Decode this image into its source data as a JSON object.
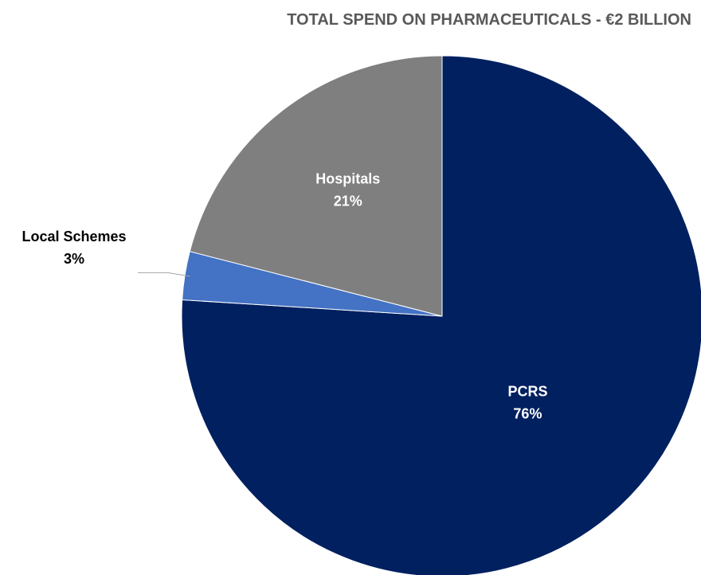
{
  "chart_data": {
    "type": "pie",
    "title": "TOTAL SPEND ON PHARMACEUTICALS - €2 BILLION",
    "slices": [
      {
        "name": "PCRS",
        "value": 76,
        "label": "76%",
        "color": "#002060",
        "label_color": "#ffffff"
      },
      {
        "name": "Local Schemes",
        "value": 3,
        "label": "3%",
        "color": "#4472C4",
        "label_color": "#000000"
      },
      {
        "name": "Hospitals",
        "value": 21,
        "label": "21%",
        "color": "#7F7F7F",
        "label_color": "#ffffff"
      }
    ],
    "start": "12 o'clock",
    "direction": "clockwise",
    "legend": "none"
  }
}
